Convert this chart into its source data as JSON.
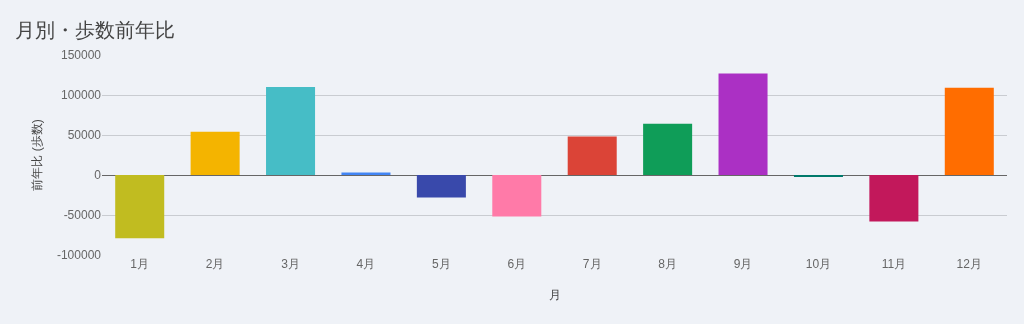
{
  "chart_data": {
    "type": "bar",
    "title": "月別・歩数前年比",
    "xlabel": "月",
    "ylabel": "前年比 (歩数)",
    "categories": [
      "1月",
      "2月",
      "3月",
      "4月",
      "5月",
      "6月",
      "7月",
      "8月",
      "9月",
      "10月",
      "11月",
      "12月"
    ],
    "values": [
      -79000,
      54000,
      110000,
      3000,
      -28000,
      -52000,
      48000,
      64000,
      127000,
      -2000,
      -58000,
      109000
    ],
    "colors": [
      "#c1bc20",
      "#f4b400",
      "#46bdc6",
      "#4285f4",
      "#3949ab",
      "#ff7aa8",
      "#db4437",
      "#0f9d58",
      "#ab30c4",
      "#00796b",
      "#c2185b",
      "#ff6d00"
    ],
    "ylim": [
      -100000,
      150000
    ],
    "yticks": [
      -100000,
      -50000,
      0,
      50000,
      100000,
      150000
    ],
    "grid": "y"
  }
}
